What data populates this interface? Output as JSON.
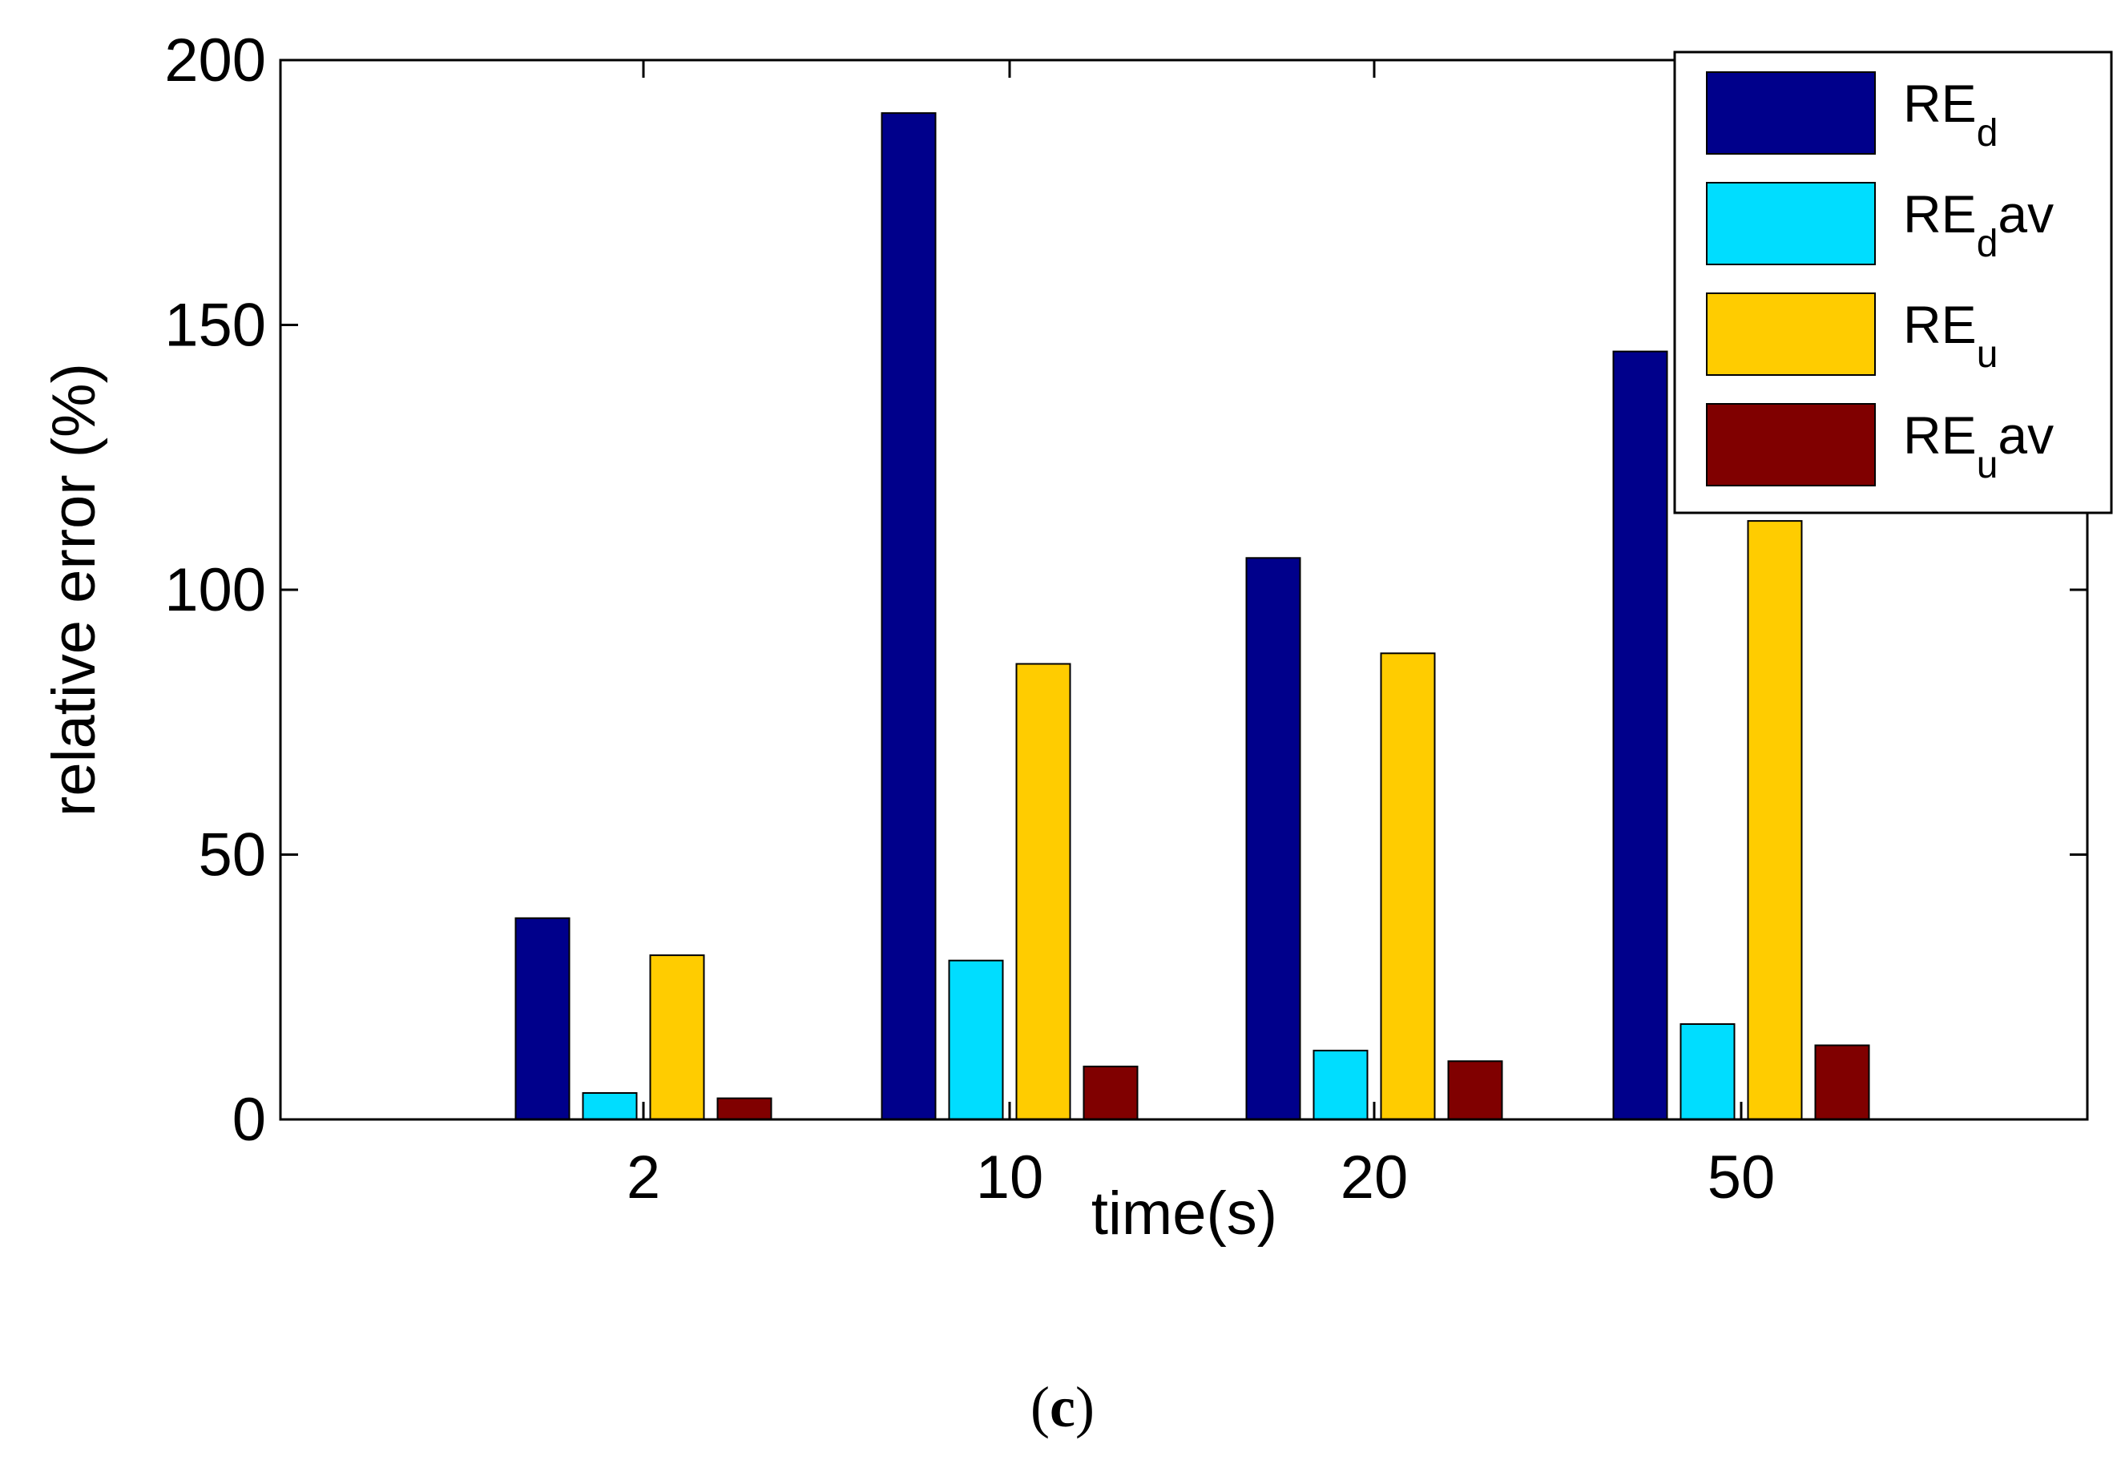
{
  "chart_data": {
    "type": "bar",
    "xlabel": "time(s)",
    "ylabel": "relative error (%)",
    "ylim": [
      0,
      200
    ],
    "yticks": [
      0,
      50,
      100,
      150,
      200
    ],
    "categories": [
      "2",
      "10",
      "20",
      "50"
    ],
    "series": [
      {
        "name": "RE_d",
        "base": "RE",
        "sub": "d",
        "suffix": "",
        "color": "#00008B",
        "values": [
          38,
          190,
          106,
          145
        ]
      },
      {
        "name": "RE_dav",
        "base": "RE",
        "sub": "d",
        "suffix": "av",
        "color": "#00DDFF",
        "values": [
          5,
          30,
          13,
          18
        ]
      },
      {
        "name": "RE_u",
        "base": "RE",
        "sub": "u",
        "suffix": "",
        "color": "#FFCC00",
        "values": [
          31,
          86,
          88,
          113
        ]
      },
      {
        "name": "RE_uav",
        "base": "RE",
        "sub": "u",
        "suffix": "av",
        "color": "#800000",
        "values": [
          4,
          10,
          11,
          14
        ]
      }
    ],
    "legend_position": "top-right",
    "grid": false
  },
  "caption": {
    "open": "(",
    "letter": "c",
    "close": ")"
  }
}
